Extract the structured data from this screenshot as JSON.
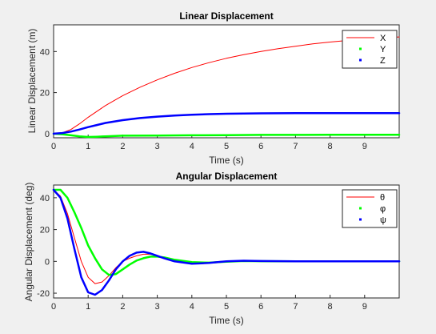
{
  "colors": {
    "figure_bg": "#f0f0f0",
    "axes_bg": "#ffffff",
    "axis": "#262626",
    "X": "#ff0000",
    "Y": "#00ff00",
    "Z": "#0000ff"
  },
  "chart_data": [
    {
      "type": "line",
      "title": "Linear Displacement",
      "xlabel": "Time (s)",
      "ylabel": "Linear Displacement (m)",
      "xlim": [
        0,
        10
      ],
      "ylim": [
        -2,
        53
      ],
      "xticks": [
        0,
        1,
        2,
        3,
        4,
        5,
        6,
        7,
        8,
        9
      ],
      "yticks": [
        0,
        20,
        40
      ],
      "grid": false,
      "legend_position": "top-right",
      "series": [
        {
          "name": "X",
          "color": "#ff0000",
          "style": "thin",
          "x": [
            0,
            0.25,
            0.5,
            0.75,
            1,
            1.5,
            2,
            2.5,
            3,
            3.5,
            4,
            4.5,
            5,
            5.5,
            6,
            6.5,
            7,
            7.5,
            8,
            8.5,
            9,
            9.5,
            10
          ],
          "y": [
            0,
            0.4,
            2.0,
            4.8,
            8.0,
            13.7,
            18.5,
            22.6,
            26.2,
            29.4,
            32.2,
            34.6,
            36.7,
            38.5,
            40.0,
            41.4,
            42.6,
            43.7,
            44.6,
            45.4,
            46.1,
            46.6,
            47.1
          ]
        },
        {
          "name": "Y",
          "color": "#00ff00",
          "style": "thick",
          "x": [
            0,
            0.25,
            0.5,
            0.75,
            1,
            1.25,
            1.5,
            2,
            3,
            4,
            5,
            6,
            7,
            8,
            9,
            10
          ],
          "y": [
            0,
            -0.3,
            -0.8,
            -1.3,
            -1.6,
            -1.5,
            -1.3,
            -1.0,
            -0.9,
            -0.8,
            -0.7,
            -0.6,
            -0.6,
            -0.5,
            -0.5,
            -0.5
          ]
        },
        {
          "name": "Z",
          "color": "#0000ff",
          "style": "thick",
          "x": [
            0,
            0.25,
            0.5,
            0.75,
            1,
            1.25,
            1.5,
            2,
            2.5,
            3,
            3.5,
            4,
            4.5,
            5,
            6,
            7,
            8,
            9,
            10
          ],
          "y": [
            0,
            0.3,
            1.0,
            2.0,
            3.2,
            4.2,
            5.2,
            6.6,
            7.6,
            8.3,
            8.8,
            9.2,
            9.5,
            9.7,
            9.9,
            10.0,
            10.0,
            10.0,
            10.0
          ]
        }
      ]
    },
    {
      "type": "line",
      "title": "Angular Displacement",
      "xlabel": "Time (s)",
      "ylabel": "Angular Displacement (deg)",
      "xlim": [
        0,
        10
      ],
      "ylim": [
        -23,
        48
      ],
      "xticks": [
        0,
        1,
        2,
        3,
        4,
        5,
        6,
        7,
        8,
        9
      ],
      "yticks": [
        -20,
        0,
        20,
        40
      ],
      "grid": false,
      "legend_position": "top-right",
      "series": [
        {
          "name": "θ",
          "color": "#ff0000",
          "style": "thin",
          "x": [
            0,
            0.2,
            0.4,
            0.6,
            0.8,
            1.0,
            1.2,
            1.4,
            1.6,
            1.8,
            2.0,
            2.2,
            2.4,
            2.6,
            2.8,
            3.0,
            3.2,
            3.5,
            4.0,
            4.5,
            5.0,
            5.5,
            6.0,
            7.0,
            8.0,
            9.0,
            10.0
          ],
          "y": [
            45,
            41,
            30,
            15,
            0,
            -10,
            -14,
            -13,
            -9,
            -4,
            0,
            2,
            3.5,
            4.5,
            4.5,
            3.5,
            2.0,
            0.5,
            -1.0,
            -0.8,
            0.2,
            0.4,
            0.2,
            0,
            0,
            0,
            0
          ]
        },
        {
          "name": "φ",
          "color": "#00ff00",
          "style": "thick",
          "x": [
            0,
            0.2,
            0.4,
            0.6,
            0.8,
            1.0,
            1.2,
            1.4,
            1.6,
            1.8,
            2.0,
            2.2,
            2.4,
            2.6,
            2.8,
            3.0,
            3.2,
            3.5,
            4.0,
            4.5,
            5.0,
            5.5,
            6.0,
            7.0,
            8.0,
            9.0,
            10.0
          ],
          "y": [
            45,
            45,
            40,
            31,
            21,
            10,
            2,
            -5,
            -8.5,
            -8,
            -5,
            -2,
            0.5,
            2,
            3,
            3,
            2.5,
            1,
            -0.5,
            -0.8,
            -0.2,
            0.2,
            0.1,
            0,
            0,
            0,
            0
          ]
        },
        {
          "name": "ψ",
          "color": "#0000ff",
          "style": "thick",
          "x": [
            0,
            0.2,
            0.4,
            0.6,
            0.8,
            1.0,
            1.2,
            1.4,
            1.6,
            1.8,
            2.0,
            2.2,
            2.4,
            2.6,
            2.8,
            3.0,
            3.2,
            3.5,
            4.0,
            4.5,
            5.0,
            5.5,
            6.0,
            7.0,
            8.0,
            9.0,
            10.0
          ],
          "y": [
            45,
            40,
            27,
            8,
            -10,
            -19.5,
            -21,
            -18,
            -12,
            -5,
            0,
            3.5,
            5.5,
            6,
            5,
            3.5,
            2,
            0,
            -1.5,
            -1,
            0,
            0.4,
            0.2,
            0,
            0,
            0,
            0
          ]
        }
      ]
    }
  ]
}
